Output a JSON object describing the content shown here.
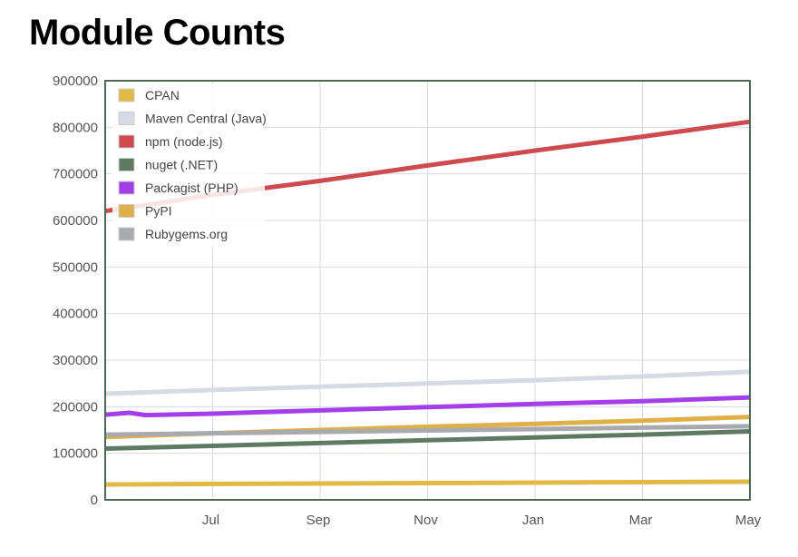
{
  "title": "Module Counts",
  "chart_data": {
    "type": "line",
    "title": "Module Counts",
    "xlabel": "",
    "ylabel": "",
    "ylim": [
      0,
      900000
    ],
    "grid": true,
    "legend_position": "top-left",
    "x_ticks": [
      "Jul",
      "Sep",
      "Nov",
      "Jan",
      "Mar",
      "May"
    ],
    "x_range": [
      "May",
      "May"
    ],
    "y_ticks": [
      0,
      100000,
      200000,
      300000,
      400000,
      500000,
      600000,
      700000,
      800000,
      900000
    ],
    "series": [
      {
        "name": "CPAN",
        "color": "#e2b945",
        "points": [
          [
            "May",
            33000
          ],
          [
            "Jul",
            34000
          ],
          [
            "Sep",
            35000
          ],
          [
            "Nov",
            36000
          ],
          [
            "Jan",
            37000
          ],
          [
            "Mar",
            38000
          ],
          [
            "May",
            39000
          ]
        ]
      },
      {
        "name": "Maven Central (Java)",
        "color": "#d7dae4",
        "points": [
          [
            "May",
            228000
          ],
          [
            "Jul",
            236000
          ],
          [
            "Sep",
            243000
          ],
          [
            "Nov",
            250000
          ],
          [
            "Jan",
            257000
          ],
          [
            "Mar",
            265000
          ],
          [
            "May",
            275000
          ]
        ]
      },
      {
        "name": "npm (node.js)",
        "color": "#cd4a4f",
        "points": [
          [
            "May",
            620000
          ],
          [
            "Jul",
            655000
          ],
          [
            "Sep",
            685000
          ],
          [
            "Nov",
            718000
          ],
          [
            "Jan",
            750000
          ],
          [
            "Mar",
            780000
          ],
          [
            "May",
            812000
          ]
        ]
      },
      {
        "name": "nuget (.NET)",
        "color": "#5f7a62",
        "points": [
          [
            "May",
            110000
          ],
          [
            "Jul",
            116000
          ],
          [
            "Sep",
            122000
          ],
          [
            "Nov",
            128000
          ],
          [
            "Jan",
            134000
          ],
          [
            "Mar",
            140000
          ],
          [
            "May",
            147000
          ]
        ]
      },
      {
        "name": "Packagist (PHP)",
        "color": "#a43ee8",
        "points": [
          [
            "May",
            183000
          ],
          [
            "Jun",
            187000
          ],
          [
            "Jun",
            182000
          ],
          [
            "Jul",
            185000
          ],
          [
            "Sep",
            192000
          ],
          [
            "Nov",
            199000
          ],
          [
            "Jan",
            206000
          ],
          [
            "Mar",
            212000
          ],
          [
            "May",
            220000
          ]
        ]
      },
      {
        "name": "PyPI",
        "color": "#dfb04a",
        "points": [
          [
            "May",
            135000
          ],
          [
            "Jul",
            143000
          ],
          [
            "Sep",
            150000
          ],
          [
            "Nov",
            157000
          ],
          [
            "Jan",
            163000
          ],
          [
            "Mar",
            170000
          ],
          [
            "May",
            178000
          ]
        ]
      },
      {
        "name": "Rubygems.org",
        "color": "#a8aaae",
        "points": [
          [
            "May",
            140000
          ],
          [
            "Jul",
            143000
          ],
          [
            "Sep",
            146000
          ],
          [
            "Nov",
            149000
          ],
          [
            "Jan",
            152000
          ],
          [
            "Mar",
            155000
          ],
          [
            "May",
            158000
          ]
        ]
      }
    ]
  }
}
